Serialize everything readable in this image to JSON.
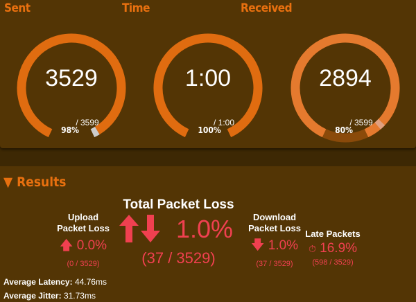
{
  "colors": {
    "accent": "#e06c10",
    "loss": "#f04050",
    "panel": "#533505"
  },
  "gauges": [
    {
      "title": "Sent",
      "value": "3529",
      "max": "/ 3599",
      "percent": "98%",
      "fraction": 0.98
    },
    {
      "title": "Time",
      "value": "1:00",
      "max": "/ 1:00",
      "percent": "100%",
      "fraction": 1.0
    },
    {
      "title": "Received",
      "value": "2894",
      "max": "/ 3599",
      "percent": "80%",
      "fraction": 0.8
    }
  ],
  "results": {
    "heading": "Results",
    "toggle_icon": "triangle-down-icon",
    "total": {
      "label": "Total Packet Loss",
      "value": "1.0%",
      "detail": "(37 / 3529)"
    },
    "upload": {
      "label1": "Upload",
      "label2": "Packet Loss",
      "value": "0.0%",
      "detail": "(0 / 3529)"
    },
    "download": {
      "label1": "Download",
      "label2": "Packet Loss",
      "value": "1.0%",
      "detail": "(37 / 3529)"
    },
    "late": {
      "label": "Late Packets",
      "value": "16.9%",
      "detail": "(598 / 3529)",
      "icon": "stopwatch-icon"
    },
    "latency": {
      "label": "Average Latency:",
      "value": "44.76ms"
    },
    "jitter": {
      "label": "Average Jitter:",
      "value": "31.73ms"
    }
  }
}
